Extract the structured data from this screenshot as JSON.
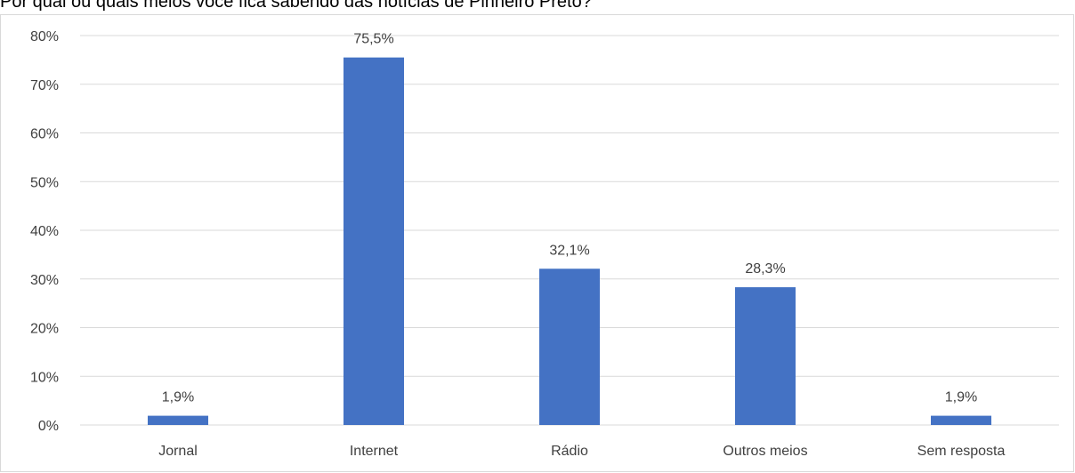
{
  "chart_data": {
    "type": "bar",
    "title": "Por qual ou quais meios você fica sabendo das notícias de Pinheiro Preto?",
    "categories": [
      "Jornal",
      "Internet",
      "Rádio",
      "Outros meios",
      "Sem resposta"
    ],
    "series": [
      {
        "values": [
          1.9,
          75.5,
          32.1,
          28.3,
          1.9
        ],
        "data_labels": [
          "1,9%",
          "75,5%",
          "32,1%",
          "28,3%",
          "1,9%"
        ],
        "color": "#4472C4"
      }
    ],
    "ylim": [
      0,
      80
    ],
    "yticks": [
      0,
      10,
      20,
      30,
      40,
      50,
      60,
      70,
      80
    ],
    "ytick_labels": [
      "0%",
      "10%",
      "20%",
      "30%",
      "40%",
      "50%",
      "60%",
      "70%",
      "80%"
    ],
    "xlabel": "",
    "ylabel": "",
    "grid": true,
    "legend": "none",
    "colors": {
      "bar": "#4472C4",
      "grid": "#d9d9d9",
      "text": "#404040"
    }
  }
}
